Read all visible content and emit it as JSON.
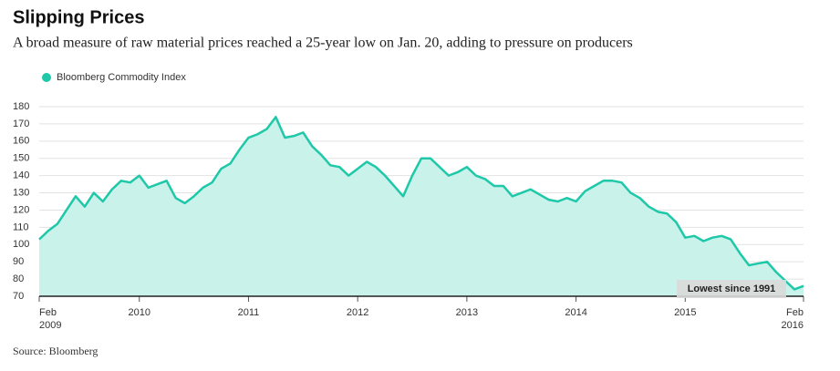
{
  "chart_data": {
    "type": "line",
    "title": "Slipping Prices",
    "subtitle": "A broad measure of raw material prices reached a 25-year low on Jan. 20, adding to pressure on producers",
    "source": "Source: Bloomberg",
    "annotation": "Lowest since 1991",
    "legend": "top-left",
    "grid": true,
    "x": [
      "2009-02",
      "2009-03",
      "2009-04",
      "2009-05",
      "2009-06",
      "2009-07",
      "2009-08",
      "2009-09",
      "2009-10",
      "2009-11",
      "2009-12",
      "2010-01",
      "2010-02",
      "2010-03",
      "2010-04",
      "2010-05",
      "2010-06",
      "2010-07",
      "2010-08",
      "2010-09",
      "2010-10",
      "2010-11",
      "2010-12",
      "2011-01",
      "2011-02",
      "2011-03",
      "2011-04",
      "2011-05",
      "2011-06",
      "2011-07",
      "2011-08",
      "2011-09",
      "2011-10",
      "2011-11",
      "2011-12",
      "2012-01",
      "2012-02",
      "2012-03",
      "2012-04",
      "2012-05",
      "2012-06",
      "2012-07",
      "2012-08",
      "2012-09",
      "2012-10",
      "2012-11",
      "2012-12",
      "2013-01",
      "2013-02",
      "2013-03",
      "2013-04",
      "2013-05",
      "2013-06",
      "2013-07",
      "2013-08",
      "2013-09",
      "2013-10",
      "2013-11",
      "2013-12",
      "2014-01",
      "2014-02",
      "2014-03",
      "2014-04",
      "2014-05",
      "2014-06",
      "2014-07",
      "2014-08",
      "2014-09",
      "2014-10",
      "2014-11",
      "2014-12",
      "2015-01",
      "2015-02",
      "2015-03",
      "2015-04",
      "2015-05",
      "2015-06",
      "2015-07",
      "2015-08",
      "2015-09",
      "2015-10",
      "2015-11",
      "2015-12",
      "2016-01",
      "2016-02"
    ],
    "series": [
      {
        "name": "Bloomberg Commodity Index",
        "color": "#1ec8a8",
        "fill": "#c8f2ea",
        "values": [
          103,
          108,
          112,
          120,
          128,
          122,
          130,
          125,
          132,
          137,
          136,
          140,
          133,
          135,
          137,
          127,
          124,
          128,
          133,
          136,
          144,
          147,
          155,
          162,
          164,
          167,
          174,
          162,
          163,
          165,
          157,
          152,
          146,
          145,
          140,
          144,
          148,
          145,
          140,
          134,
          128,
          140,
          150,
          150,
          145,
          140,
          142,
          145,
          140,
          138,
          134,
          134,
          128,
          130,
          132,
          129,
          126,
          125,
          127,
          125,
          131,
          134,
          137,
          137,
          136,
          130,
          127,
          122,
          119,
          118,
          113,
          104,
          105,
          102,
          104,
          105,
          103,
          95,
          88,
          89,
          90,
          84,
          79,
          74,
          76
        ]
      }
    ],
    "xlim": [
      "2009-02",
      "2016-02"
    ],
    "xticks": [
      {
        "value": "2009-02",
        "label": "Feb 2009"
      },
      {
        "value": "2010-01",
        "label": "2010"
      },
      {
        "value": "2011-01",
        "label": "2011"
      },
      {
        "value": "2012-01",
        "label": "2012"
      },
      {
        "value": "2013-01",
        "label": "2013"
      },
      {
        "value": "2014-01",
        "label": "2014"
      },
      {
        "value": "2015-01",
        "label": "2015"
      },
      {
        "value": "2016-02",
        "label": "Feb 2016"
      }
    ],
    "ylim": [
      70,
      180
    ],
    "yticks": [
      70,
      80,
      90,
      100,
      110,
      120,
      130,
      140,
      150,
      160,
      170,
      180
    ]
  }
}
